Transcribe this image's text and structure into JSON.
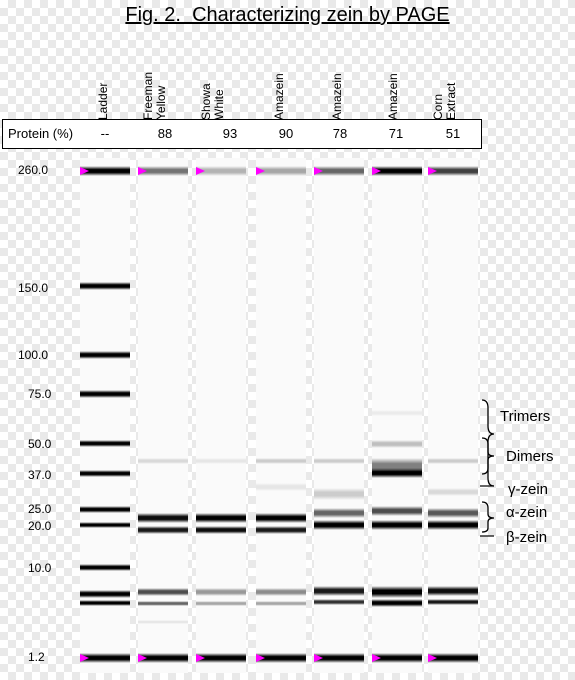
{
  "title": "Fig. 2.  Characterizing zein by PAGE",
  "lanes": [
    {
      "label": [
        "Ladder"
      ],
      "protein": "--"
    },
    {
      "label": [
        "Freeman",
        "Yellow"
      ],
      "protein": "88"
    },
    {
      "label": [
        "Showa",
        "White"
      ],
      "protein": "93"
    },
    {
      "label": [
        "Amazein"
      ],
      "protein": "90"
    },
    {
      "label": [
        "Amazein"
      ],
      "protein": "78"
    },
    {
      "label": [
        "Amazein"
      ],
      "protein": "71"
    },
    {
      "label": [
        "Corn",
        "Extract"
      ],
      "protein": "51"
    }
  ],
  "protein_label": "Protein (%)",
  "ladder_sizes": [
    "260.0",
    "150.0",
    "100.0",
    "75.0",
    "50.0",
    "37.0",
    "25.0",
    "20.0",
    "10.0",
    "1.2"
  ],
  "annotations": {
    "trimers": "Trimers",
    "dimers": "Dimers",
    "gamma_zein": "γ-zein",
    "alpha_zein": "α-zein",
    "beta_zein": "β-zein"
  },
  "colors": {
    "marker": "#ff00ff",
    "band": "#000000"
  }
}
